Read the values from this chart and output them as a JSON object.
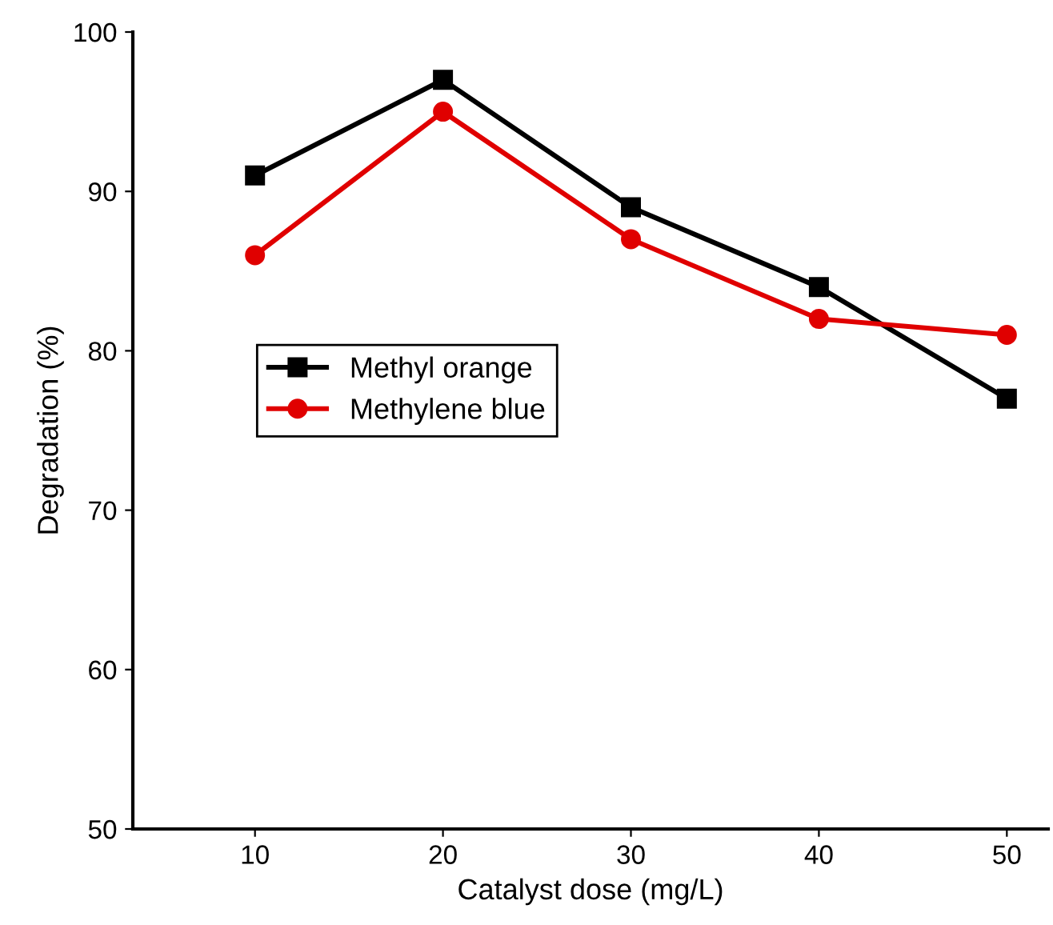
{
  "chart_data": {
    "type": "line",
    "xlabel": "Catalyst dose (mg/L)",
    "ylabel": "Degradation (%)",
    "x": [
      10,
      20,
      30,
      40,
      50
    ],
    "series": [
      {
        "name": "Methyl orange",
        "color": "#000000",
        "marker": "square",
        "values": [
          91,
          97,
          89,
          84,
          77
        ]
      },
      {
        "name": "Methylene blue",
        "color": "#e00000",
        "marker": "circle",
        "values": [
          86,
          95,
          87,
          82,
          81
        ]
      }
    ],
    "xlim": [
      3.5,
      52.2
    ],
    "xticks": [
      10,
      20,
      30,
      40,
      50
    ],
    "ylim": [
      50,
      100
    ],
    "yticks": [
      50,
      60,
      70,
      80,
      90,
      100
    ],
    "grid": false,
    "legend": "center left",
    "line_style": "solid"
  }
}
